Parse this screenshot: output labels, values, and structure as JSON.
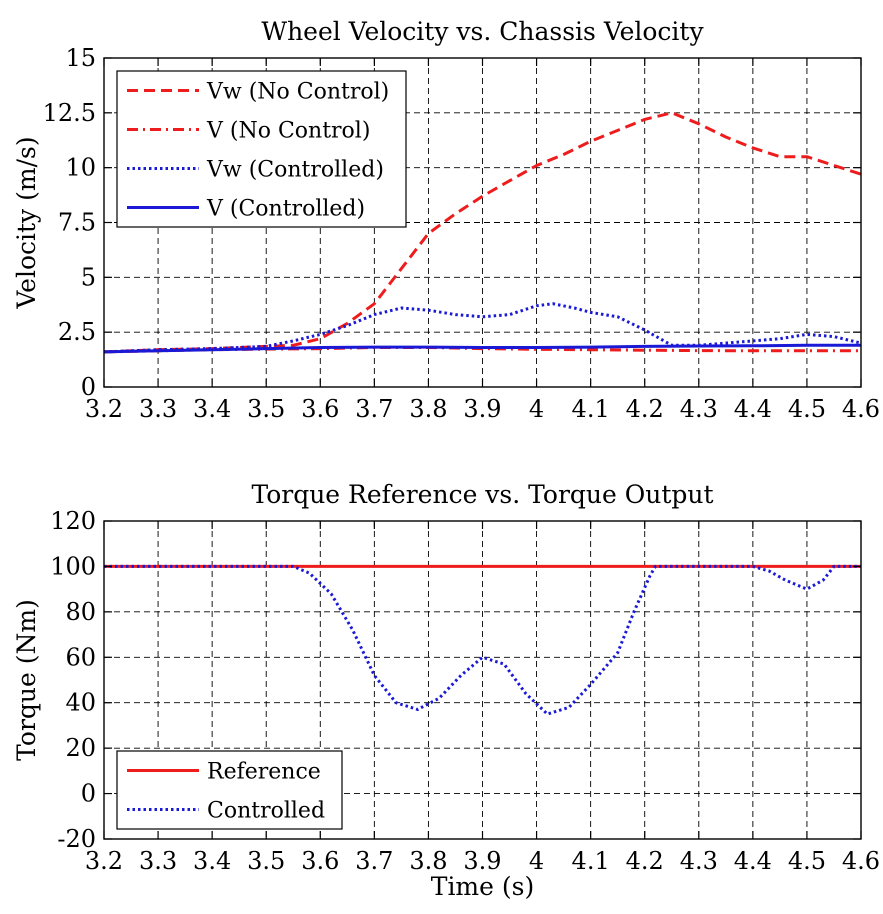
{
  "chart_data": [
    {
      "type": "line",
      "title": "Wheel Velocity vs. Chassis Velocity",
      "xlabel": "",
      "ylabel": "Velocity (m/s)",
      "xlim": [
        3.2,
        4.6
      ],
      "ylim": [
        0,
        15
      ],
      "xticks": [
        3.2,
        3.3,
        3.4,
        3.5,
        3.6,
        3.7,
        3.8,
        3.9,
        4.0,
        4.1,
        4.2,
        4.3,
        4.4,
        4.5,
        4.6
      ],
      "xtick_labels": [
        "3.2",
        "3.3",
        "3.4",
        "3.5",
        "3.6",
        "3.7",
        "3.8",
        "3.9",
        "4",
        "4.1",
        "4.2",
        "4.3",
        "4.4",
        "4.5",
        "4.6"
      ],
      "yticks": [
        0,
        2.5,
        5,
        7.5,
        10,
        12.5,
        15
      ],
      "ytick_labels": [
        "0",
        "2.5",
        "5",
        "7.5",
        "10",
        "12.5",
        "15"
      ],
      "grid": true,
      "legend_position": "top-left",
      "series": [
        {
          "name": "Vw (No Control)",
          "color": "#ee1c1c",
          "style": "dashed",
          "x": [
            3.2,
            3.3,
            3.4,
            3.45,
            3.5,
            3.55,
            3.6,
            3.65,
            3.7,
            3.75,
            3.8,
            3.85,
            3.9,
            3.95,
            4.0,
            4.05,
            4.1,
            4.15,
            4.2,
            4.25,
            4.3,
            4.35,
            4.4,
            4.45,
            4.5,
            4.55,
            4.6
          ],
          "y": [
            1.6,
            1.7,
            1.75,
            1.8,
            1.85,
            1.9,
            2.2,
            2.9,
            3.8,
            5.4,
            7.0,
            7.9,
            8.7,
            9.4,
            10.1,
            10.6,
            11.2,
            11.7,
            12.2,
            12.5,
            12.0,
            11.4,
            10.9,
            10.5,
            10.5,
            10.1,
            9.7
          ]
        },
        {
          "name": "V (No Control)",
          "color": "#ee1c1c",
          "style": "dashdot",
          "x": [
            3.2,
            3.4,
            3.6,
            3.7,
            3.8,
            3.9,
            4.0,
            4.1,
            4.2,
            4.3,
            4.4,
            4.5,
            4.6
          ],
          "y": [
            1.6,
            1.7,
            1.75,
            1.8,
            1.8,
            1.75,
            1.72,
            1.7,
            1.68,
            1.66,
            1.65,
            1.65,
            1.65
          ]
        },
        {
          "name": "Vw (Controlled)",
          "color": "#1a1ad6",
          "style": "dotted",
          "x": [
            3.2,
            3.3,
            3.4,
            3.5,
            3.55,
            3.6,
            3.65,
            3.7,
            3.75,
            3.8,
            3.85,
            3.9,
            3.95,
            4.0,
            4.03,
            4.07,
            4.1,
            4.15,
            4.2,
            4.25,
            4.3,
            4.35,
            4.4,
            4.45,
            4.5,
            4.55,
            4.6
          ],
          "y": [
            1.6,
            1.7,
            1.75,
            1.85,
            2.1,
            2.4,
            2.8,
            3.3,
            3.6,
            3.5,
            3.3,
            3.2,
            3.3,
            3.7,
            3.8,
            3.6,
            3.4,
            3.2,
            2.6,
            1.9,
            1.9,
            2.0,
            2.1,
            2.2,
            2.4,
            2.3,
            2.0
          ]
        },
        {
          "name": "V (Controlled)",
          "color": "#1a1ad6",
          "style": "solid",
          "x": [
            3.2,
            3.4,
            3.6,
            3.7,
            3.8,
            3.9,
            4.0,
            4.1,
            4.2,
            4.3,
            4.4,
            4.5,
            4.6
          ],
          "y": [
            1.6,
            1.7,
            1.8,
            1.82,
            1.82,
            1.8,
            1.8,
            1.82,
            1.85,
            1.87,
            1.88,
            1.9,
            1.9
          ]
        }
      ]
    },
    {
      "type": "line",
      "title": "Torque Reference vs. Torque Output",
      "xlabel": "Time (s)",
      "ylabel": "Torque (Nm)",
      "xlim": [
        3.2,
        4.6
      ],
      "ylim": [
        -20,
        120
      ],
      "xticks": [
        3.2,
        3.3,
        3.4,
        3.5,
        3.6,
        3.7,
        3.8,
        3.9,
        4.0,
        4.1,
        4.2,
        4.3,
        4.4,
        4.5,
        4.6
      ],
      "xtick_labels": [
        "3.2",
        "3.3",
        "3.4",
        "3.5",
        "3.6",
        "3.7",
        "3.8",
        "3.9",
        "4",
        "4.1",
        "4.2",
        "4.3",
        "4.4",
        "4.5",
        "4.6"
      ],
      "yticks": [
        -20,
        0,
        20,
        40,
        60,
        80,
        100,
        120
      ],
      "ytick_labels": [
        "-20",
        "0",
        "20",
        "40",
        "60",
        "80",
        "100",
        "120"
      ],
      "grid": true,
      "legend_position": "bottom-left",
      "series": [
        {
          "name": "Reference",
          "color": "#ee1c1c",
          "style": "solid",
          "x": [
            3.2,
            4.6
          ],
          "y": [
            100,
            100
          ]
        },
        {
          "name": "Controlled",
          "color": "#1a1ad6",
          "style": "dotted",
          "x": [
            3.2,
            3.55,
            3.58,
            3.62,
            3.66,
            3.7,
            3.74,
            3.78,
            3.82,
            3.86,
            3.9,
            3.94,
            3.98,
            4.02,
            4.06,
            4.1,
            4.15,
            4.18,
            4.21,
            4.22,
            4.4,
            4.43,
            4.46,
            4.5,
            4.53,
            4.55,
            4.6
          ],
          "y": [
            100,
            100,
            97,
            88,
            72,
            52,
            40,
            37,
            42,
            52,
            60,
            57,
            44,
            35,
            38,
            48,
            62,
            80,
            96,
            100,
            100,
            98,
            94,
            90,
            94,
            100,
            100
          ]
        }
      ]
    }
  ]
}
